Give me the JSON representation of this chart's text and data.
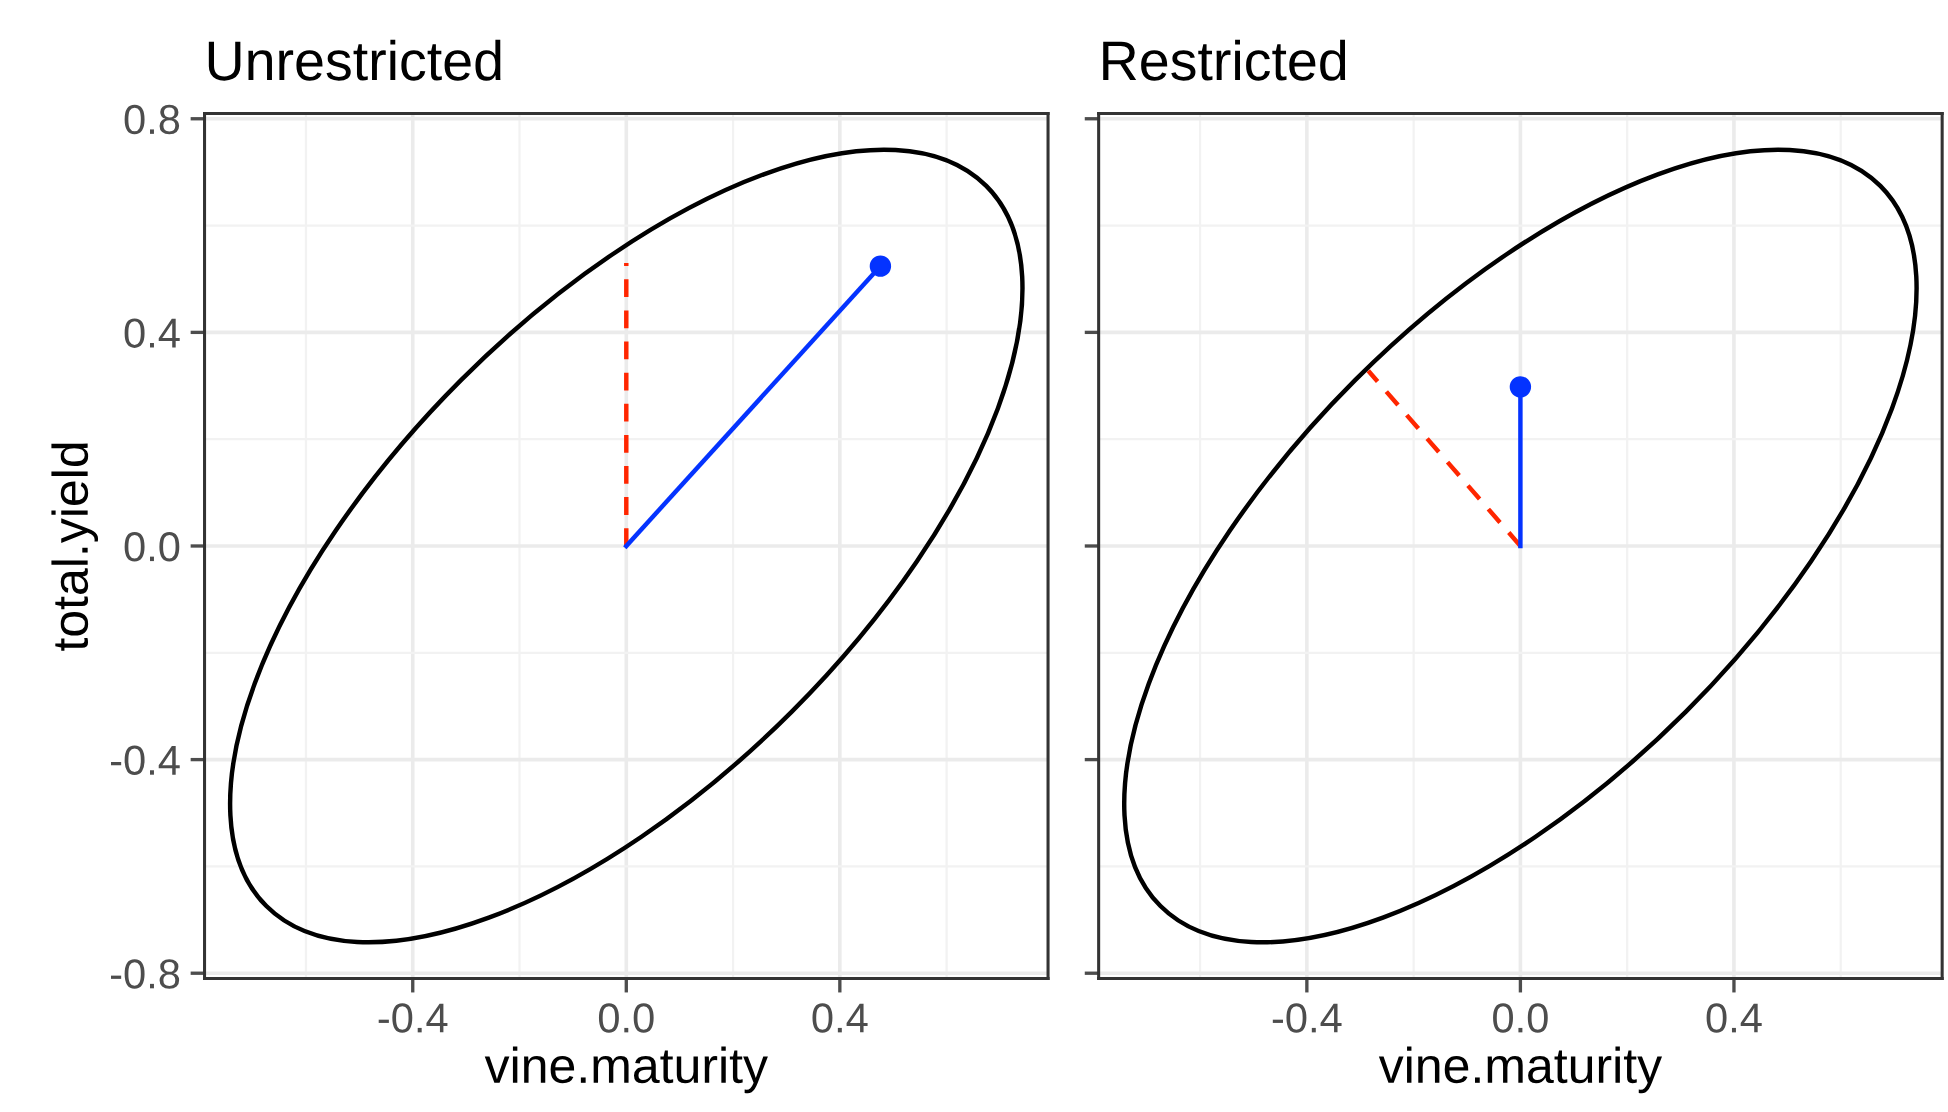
{
  "chart_data": [
    {
      "type": "line",
      "title": "Unrestricted",
      "xlabel": "vine.maturity",
      "ylabel": "total.yield",
      "xlim": [
        -0.79,
        0.79
      ],
      "ylim": [
        -0.81,
        0.81
      ],
      "xticks": [
        {
          "value": -0.4,
          "label": "-0.4"
        },
        {
          "value": 0.0,
          "label": "0.0"
        },
        {
          "value": 0.4,
          "label": "0.4"
        }
      ],
      "yticks": [
        {
          "value": -0.8,
          "label": "-0.8"
        },
        {
          "value": -0.4,
          "label": "-0.4"
        },
        {
          "value": 0.0,
          "label": "0.0"
        },
        {
          "value": 0.4,
          "label": "0.4"
        },
        {
          "value": 0.8,
          "label": "0.8"
        }
      ],
      "grid": true,
      "series": [
        {
          "type": "line",
          "color": "#ff2600",
          "line_style": "dashed",
          "x": [
            0.0,
            0.0
          ],
          "values": [
            0.0,
            0.53
          ]
        },
        {
          "type": "line",
          "color": "#0433ff",
          "line_style": "solid",
          "x": [
            0.0,
            0.476
          ],
          "values": [
            0.0,
            0.524
          ]
        },
        {
          "type": "scatter",
          "color": "#0433ff",
          "marker": "circle",
          "x": [
            0.476
          ],
          "values": [
            0.524
          ]
        }
      ]
    },
    {
      "type": "line",
      "title": "Restricted",
      "xlabel": "vine.maturity",
      "xlim": [
        -0.79,
        0.79
      ],
      "ylim": [
        -0.81,
        0.81
      ],
      "xticks": [
        {
          "value": -0.4,
          "label": "-0.4"
        },
        {
          "value": 0.0,
          "label": "0.0"
        },
        {
          "value": 0.4,
          "label": "0.4"
        }
      ],
      "yticks": [
        -0.8,
        -0.4,
        0.0,
        0.4,
        0.8
      ],
      "tick_labels": "x",
      "grid": true,
      "series": [
        {
          "type": "line",
          "color": "#ff2600",
          "line_style": "dashed",
          "x": [
            0.0,
            -0.285
          ],
          "values": [
            0.0,
            0.328
          ]
        },
        {
          "type": "line",
          "color": "#0433ff",
          "line_style": "solid",
          "x": [
            0.0,
            0.0
          ],
          "values": [
            0.0,
            0.298
          ]
        },
        {
          "type": "scatter",
          "color": "#0433ff",
          "marker": "circle",
          "x": [
            0.0
          ],
          "values": [
            0.298
          ]
        }
      ]
    }
  ]
}
